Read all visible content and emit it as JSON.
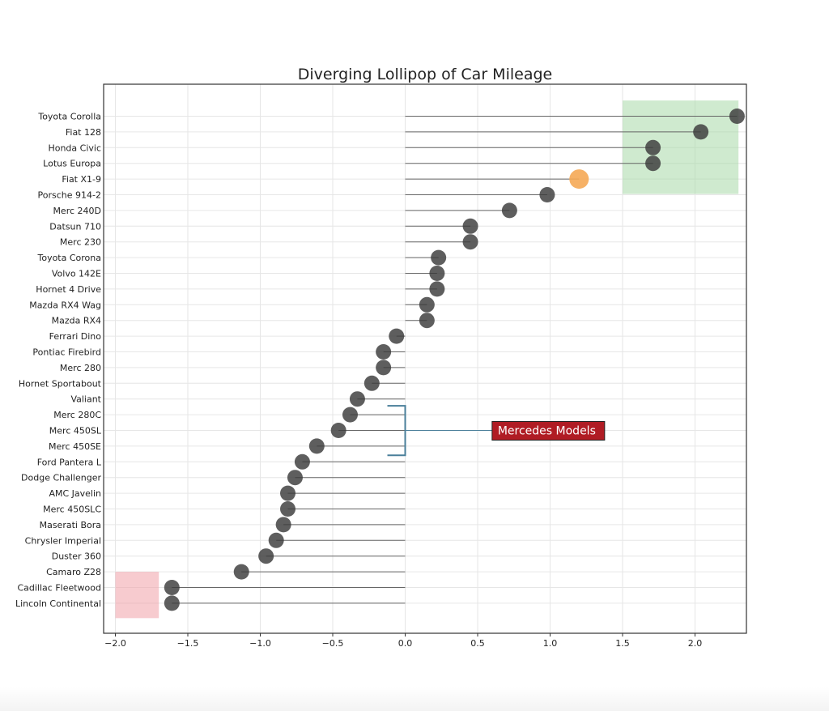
{
  "chart_data": {
    "type": "lollipop",
    "title": "Diverging Lollipop of Car Mileage",
    "xlabel": "",
    "ylabel": "",
    "xlim": [
      -2.05,
      2.35
    ],
    "xticks": [
      -2.0,
      -1.5,
      -1.0,
      -0.5,
      0.0,
      0.5,
      1.0,
      1.5,
      2.0
    ],
    "xtick_labels": [
      "−2.0",
      "−1.5",
      "−1.0",
      "−0.5",
      "0.0",
      "0.5",
      "1.0",
      "1.5",
      "2.0"
    ],
    "grid": true,
    "baseline": 0,
    "categories": [
      "Toyota Corolla",
      "Fiat 128",
      "Honda Civic",
      "Lotus Europa",
      "Fiat X1-9",
      "Porsche 914-2",
      "Merc 240D",
      "Datsun 710",
      "Merc 230",
      "Toyota Corona",
      "Volvo 142E",
      "Hornet 4 Drive",
      "Mazda RX4 Wag",
      "Mazda RX4",
      "Ferrari Dino",
      "Pontiac Firebird",
      "Merc 280",
      "Hornet Sportabout",
      "Valiant",
      "Merc 280C",
      "Merc 450SL",
      "Merc 450SE",
      "Ford Pantera L",
      "Dodge Challenger",
      "AMC Javelin",
      "Merc 450SLC",
      "Maserati Bora",
      "Chrysler Imperial",
      "Duster 360",
      "Camaro Z28",
      "Cadillac Fleetwood",
      "Lincoln Continental"
    ],
    "values": [
      2.29,
      2.04,
      1.71,
      1.71,
      1.2,
      0.98,
      0.72,
      0.45,
      0.45,
      0.23,
      0.22,
      0.22,
      0.15,
      0.15,
      -0.06,
      -0.15,
      -0.15,
      -0.23,
      -0.33,
      -0.38,
      -0.46,
      -0.61,
      -0.71,
      -0.76,
      -0.81,
      -0.81,
      -0.84,
      -0.89,
      -0.96,
      -1.13,
      -1.61,
      -1.61
    ],
    "highlight_index": 4,
    "colors": {
      "point": "#3a3a3a",
      "stem": "#666666",
      "highlight_point": "#f5a855",
      "good_region": "#a8d8a8",
      "bad_region": "#f0a0a8",
      "annotation_bg": "#b01c24",
      "annotation_border": "#222222",
      "bracket": "#4a7f9a",
      "grid": "#e6e6e6"
    },
    "regions": [
      {
        "x": [
          1.5,
          2.3
        ],
        "y_categories": [
          "Toyota Corolla",
          "Fiat X1-9"
        ],
        "color_key": "good_region"
      },
      {
        "x": [
          -2.0,
          -1.7
        ],
        "y_categories": [
          "Cadillac Fleetwood",
          "Lincoln Continental"
        ],
        "color_key": "bad_region"
      }
    ],
    "annotation": {
      "text": "Mercedes Models",
      "text_x": 0.65,
      "text_category": "Merc 450SL",
      "bracket_x": 0.0,
      "bracket_categories": [
        "Merc 280C",
        "Ford Pantera L"
      ]
    }
  }
}
